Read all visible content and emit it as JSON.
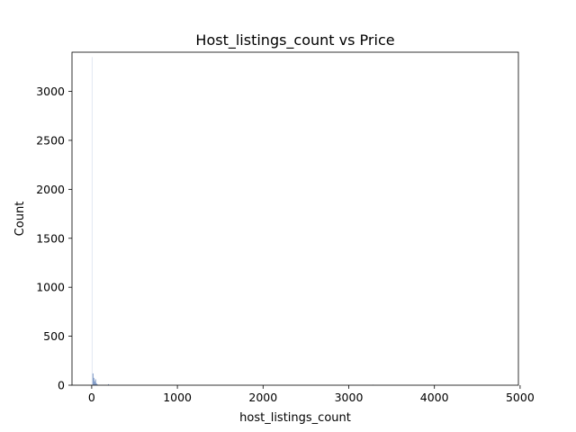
{
  "chart_data": {
    "type": "bar",
    "title": "Host_listings_count vs Price",
    "xlabel": "host_listings_count",
    "ylabel": "Count",
    "xlim": [
      -230,
      4980
    ],
    "ylim": [
      0,
      3400
    ],
    "xticks": [
      0,
      1000,
      2000,
      3000,
      4000,
      5000
    ],
    "yticks": [
      0,
      500,
      1000,
      1500,
      2000,
      2500,
      3000
    ],
    "grid": false,
    "legend": "none",
    "bar_color": "#4c72b0",
    "bins": [
      {
        "x": 0,
        "width": 10,
        "count": 3350
      },
      {
        "x": 10,
        "width": 10,
        "count": 120
      },
      {
        "x": 20,
        "width": 10,
        "count": 75
      },
      {
        "x": 30,
        "width": 10,
        "count": 40
      },
      {
        "x": 40,
        "width": 10,
        "count": 60
      },
      {
        "x": 50,
        "width": 10,
        "count": 20
      },
      {
        "x": 60,
        "width": 10,
        "count": 8
      },
      {
        "x": 190,
        "width": 10,
        "count": 10
      },
      {
        "x": 3280,
        "width": 10,
        "count": 5
      }
    ]
  }
}
